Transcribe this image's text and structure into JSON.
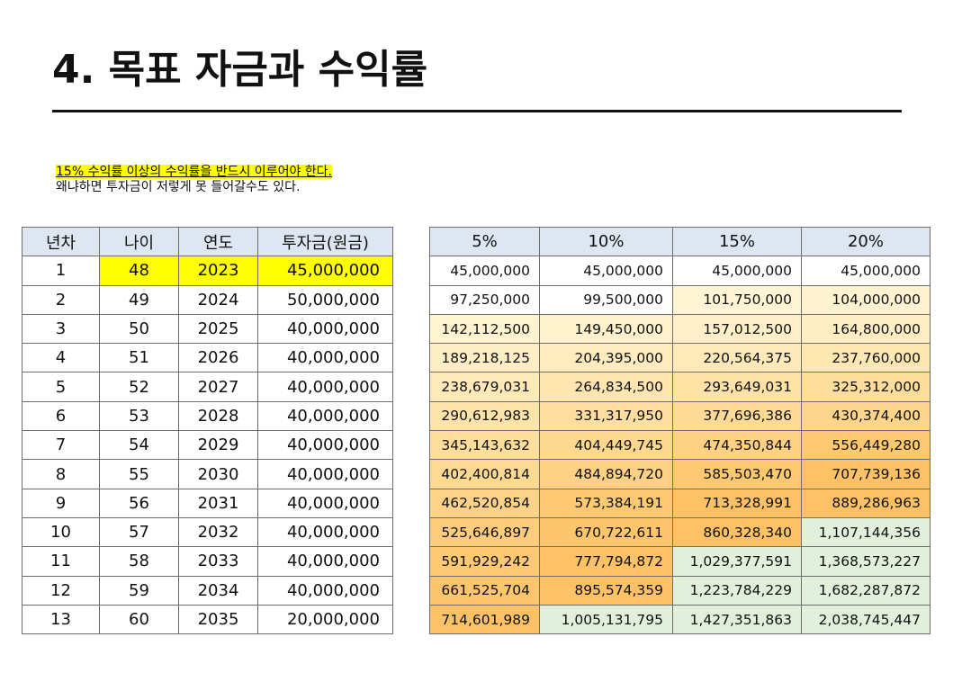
{
  "title": "4. 목표 자금과 수익률",
  "note": {
    "line1": "15% 수익률 이상의 수익률을 반드시 이루어야 한다.",
    "line2": "왜냐하면 투자금이 저렇게 못 들어갈수도 있다."
  },
  "left_table": {
    "headers": [
      "년차",
      "나이",
      "연도",
      "투자금(원금)"
    ],
    "rows": [
      [
        "1",
        "48",
        "2023",
        "45,000,000"
      ],
      [
        "2",
        "49",
        "2024",
        "50,000,000"
      ],
      [
        "3",
        "50",
        "2025",
        "40,000,000"
      ],
      [
        "4",
        "51",
        "2026",
        "40,000,000"
      ],
      [
        "5",
        "52",
        "2027",
        "40,000,000"
      ],
      [
        "6",
        "53",
        "2028",
        "40,000,000"
      ],
      [
        "7",
        "54",
        "2029",
        "40,000,000"
      ],
      [
        "8",
        "55",
        "2030",
        "40,000,000"
      ],
      [
        "9",
        "56",
        "2031",
        "40,000,000"
      ],
      [
        "10",
        "57",
        "2032",
        "40,000,000"
      ],
      [
        "11",
        "58",
        "2033",
        "40,000,000"
      ],
      [
        "12",
        "59",
        "2034",
        "40,000,000"
      ],
      [
        "13",
        "60",
        "2035",
        "20,000,000"
      ]
    ],
    "highlight_color": "#ffff00"
  },
  "right_table": {
    "headers": [
      "5%",
      "10%",
      "15%",
      "20%"
    ],
    "rows": [
      [
        "45,000,000",
        "45,000,000",
        "45,000,000",
        "45,000,000"
      ],
      [
        "97,250,000",
        "99,500,000",
        "101,750,000",
        "104,000,000"
      ],
      [
        "142,112,500",
        "149,450,000",
        "157,012,500",
        "164,800,000"
      ],
      [
        "189,218,125",
        "204,395,000",
        "220,564,375",
        "237,760,000"
      ],
      [
        "238,679,031",
        "264,834,500",
        "293,649,031",
        "325,312,000"
      ],
      [
        "290,612,983",
        "331,317,950",
        "377,696,386",
        "430,374,400"
      ],
      [
        "345,143,632",
        "404,449,745",
        "474,350,844",
        "556,449,280"
      ],
      [
        "402,400,814",
        "484,894,720",
        "585,503,470",
        "707,739,136"
      ],
      [
        "462,520,854",
        "573,384,191",
        "713,328,991",
        "889,286,963"
      ],
      [
        "525,646,897",
        "670,722,611",
        "860,328,340",
        "1,107,144,356"
      ],
      [
        "591,929,242",
        "777,794,872",
        "1,029,377,591",
        "1,368,573,227"
      ],
      [
        "661,525,704",
        "895,574,359",
        "1,223,784,229",
        "1,682,287,872"
      ],
      [
        "714,601,989",
        "1,005,131,795",
        "1,427,351,863",
        "2,038,745,447"
      ]
    ],
    "cell_colors": [
      [
        "#ffffff",
        "#ffffff",
        "#ffffff",
        "#ffffff"
      ],
      [
        "#ffffff",
        "#ffffff",
        "#fff4d4",
        "#fff2d0"
      ],
      [
        "#fff3d0",
        "#fff1cc",
        "#ffefc6",
        "#ffeec2"
      ],
      [
        "#ffeec4",
        "#ffecbe",
        "#ffe9b8",
        "#ffe7b2"
      ],
      [
        "#ffe9b7",
        "#ffe6b0",
        "#ffe2a6",
        "#ffde9c"
      ],
      [
        "#ffe4aa",
        "#ffdea0",
        "#ffda94",
        "#fed58a"
      ],
      [
        "#ffde9c",
        "#fed88f",
        "#fed184",
        "#fdc970"
      ],
      [
        "#fed992",
        "#fed184",
        "#fdc970",
        "#fdc266"
      ],
      [
        "#fed387",
        "#fdca72",
        "#fdc266",
        "#fdc266"
      ],
      [
        "#fdcd7b",
        "#fdc66c",
        "#fdc266",
        "#e2efda"
      ],
      [
        "#fdc972",
        "#fdc266",
        "#e2efda",
        "#e2efda"
      ],
      [
        "#fdc66c",
        "#fdc266",
        "#e2efda",
        "#e2efda"
      ],
      [
        "#fdc266",
        "#e2efda",
        "#e2efda",
        "#e2efda"
      ]
    ],
    "header_color": "#dde6f1"
  }
}
